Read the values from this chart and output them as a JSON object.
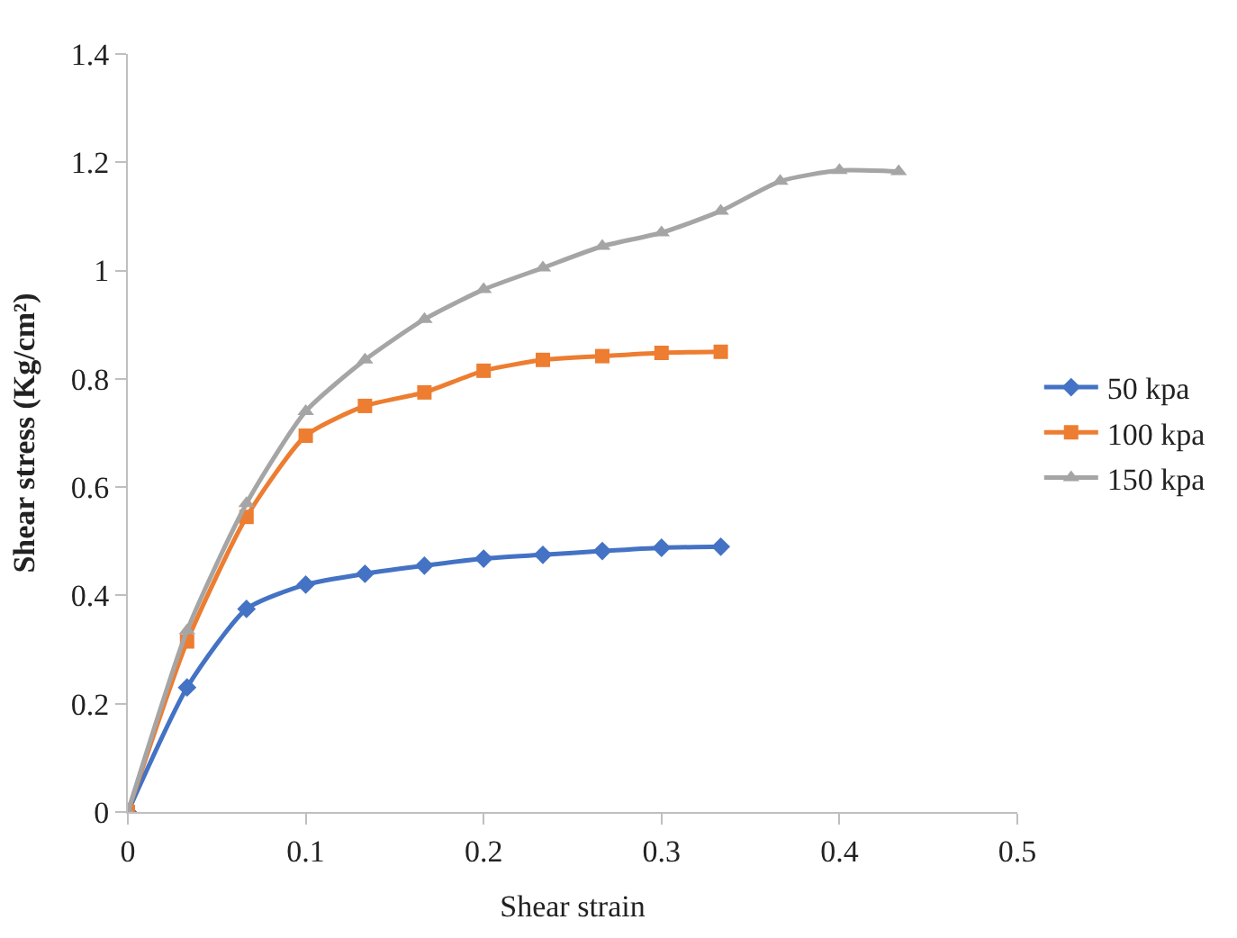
{
  "chart_data": {
    "type": "line",
    "xlabel": "Shear strain",
    "ylabel": "Shear stress (Kg/cm²)",
    "x": [
      0,
      0.0333,
      0.0667,
      0.1,
      0.1333,
      0.1667,
      0.2,
      0.2333,
      0.2667,
      0.3,
      0.3333,
      0.3667,
      0.4,
      0.4333
    ],
    "series": [
      {
        "name": "50 kpa",
        "color": "#4472c4",
        "marker": "diamond",
        "values": [
          0,
          0.23,
          0.375,
          0.42,
          0.44,
          0.455,
          0.468,
          0.475,
          0.482,
          0.488,
          0.49,
          null,
          null,
          null
        ]
      },
      {
        "name": "100 kpa",
        "color": "#ed7d31",
        "marker": "square",
        "values": [
          0,
          0.315,
          0.545,
          0.695,
          0.75,
          0.775,
          0.815,
          0.835,
          0.842,
          0.848,
          0.85,
          null,
          null,
          null
        ]
      },
      {
        "name": "150 kpa",
        "color": "#a5a5a5",
        "marker": "triangle",
        "values": [
          0,
          0.335,
          0.57,
          0.74,
          0.835,
          0.91,
          0.965,
          1.005,
          1.045,
          1.07,
          1.11,
          1.165,
          1.185,
          1.183
        ]
      }
    ],
    "xlim": [
      0,
      0.5
    ],
    "xticks": [
      0,
      0.1,
      0.2,
      0.3,
      0.4,
      0.5
    ],
    "ylim": [
      0,
      1.4
    ],
    "yticks": [
      0,
      0.2,
      0.4,
      0.6,
      0.8,
      1,
      1.2,
      1.4
    ],
    "legend": "right",
    "line_style": "solid"
  }
}
